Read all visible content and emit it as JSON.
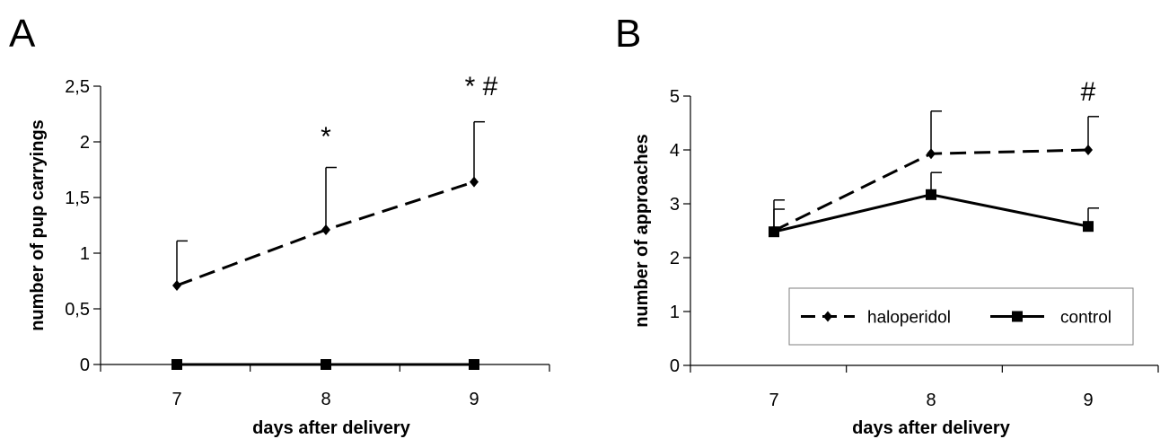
{
  "chart_data": [
    {
      "type": "line",
      "panel": "A",
      "categories": [
        "7",
        "8",
        "9"
      ],
      "xlabel": "days after delivery",
      "ylabel": "number of pup carryings",
      "ylim": [
        0,
        2.5
      ],
      "yticks": [
        "0",
        "0,5",
        "1",
        "1,5",
        "2",
        "2,5"
      ],
      "series": [
        {
          "name": "haloperidol",
          "style": "dashed",
          "marker": "diamond",
          "values": [
            0.71,
            1.21,
            1.64
          ],
          "error_upper": [
            1.11,
            1.77,
            2.18
          ]
        },
        {
          "name": "control",
          "style": "solid",
          "marker": "square",
          "values": [
            0,
            0,
            0
          ],
          "error_upper": [
            0,
            0,
            0
          ]
        }
      ],
      "annotations": [
        {
          "category": "8",
          "text": "*"
        },
        {
          "category": "9",
          "text": "* #"
        }
      ]
    },
    {
      "type": "line",
      "panel": "B",
      "categories": [
        "7",
        "8",
        "9"
      ],
      "xlabel": "days after delivery",
      "ylabel": "number of approaches",
      "ylim": [
        0,
        5
      ],
      "yticks": [
        "0",
        "1",
        "2",
        "3",
        "4",
        "5"
      ],
      "series": [
        {
          "name": "haloperidol",
          "style": "dashed",
          "marker": "diamond",
          "values": [
            2.5,
            3.93,
            4.0
          ],
          "error_upper": [
            2.9,
            4.72,
            4.62
          ]
        },
        {
          "name": "control",
          "style": "solid",
          "marker": "square",
          "values": [
            2.48,
            3.17,
            2.58
          ],
          "error_upper": [
            3.07,
            3.58,
            2.92
          ]
        }
      ],
      "annotations": [
        {
          "category": "9",
          "text": "#"
        }
      ],
      "legend": "inside-bottom"
    }
  ],
  "colors": {
    "line": "#000000",
    "legend_border": "#7f7f7f"
  }
}
